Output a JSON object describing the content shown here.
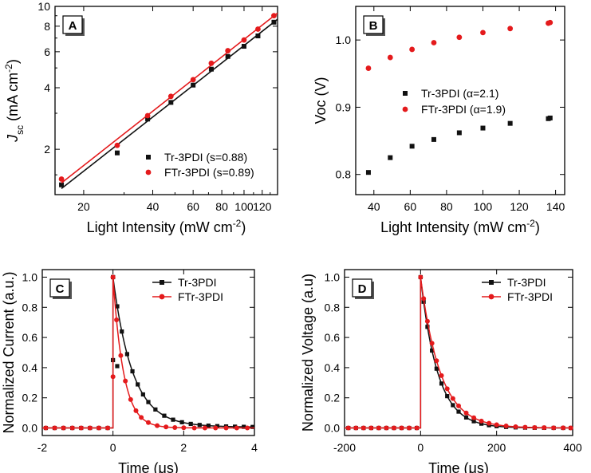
{
  "colors": {
    "black": "#111111",
    "red": "#e41a1c",
    "axis": "#000000",
    "panel_label_bg": "#ffffff"
  },
  "chart_data": [
    {
      "panel": "A",
      "type": "scatter",
      "scale": "log-log",
      "xlabel": "Light Intensity (mW cm",
      "xlabel_sup": "-2",
      "xlabel_tail": ")",
      "ylabel_main": "J",
      "ylabel_sub": "sc",
      "ylabel_tail": " (mA cm",
      "ylabel_sup": "-2",
      "ylabel_end": ")",
      "xlim": [
        15,
        140
      ],
      "ylim": [
        1.2,
        10
      ],
      "x_ticks": [
        20,
        40,
        60,
        80,
        100,
        120
      ],
      "x_tick_labels": [
        "20",
        "40",
        "60",
        "80",
        "100",
        "120"
      ],
      "y_ticks": [
        2,
        4,
        6,
        8,
        10
      ],
      "y_tick_labels": [
        "2",
        "4",
        "6",
        "8",
        "10"
      ],
      "legend_position": "bottom-right",
      "series": [
        {
          "name": "Tr-3PDI (s=0.88)",
          "color": "black",
          "marker": "square",
          "x": [
            16,
            28,
            38,
            48,
            60,
            72,
            85,
            100,
            115,
            135
          ],
          "y": [
            1.34,
            1.92,
            2.81,
            3.39,
            4.12,
            4.93,
            5.69,
            6.38,
            7.17,
            8.37
          ],
          "fit": true
        },
        {
          "name": "FTr-3PDI (s=0.89)",
          "color": "red",
          "marker": "circle",
          "x": [
            16,
            28,
            38,
            48,
            60,
            72,
            85,
            100,
            115,
            135
          ],
          "y": [
            1.43,
            2.09,
            2.92,
            3.63,
            4.38,
            5.27,
            6.07,
            6.85,
            7.74,
            9.01
          ],
          "fit": true
        }
      ]
    },
    {
      "panel": "B",
      "type": "scatter",
      "xlabel": "Light Intensity (mW cm",
      "xlabel_sup": "-2",
      "xlabel_tail": ")",
      "ylabel_main": "Voc (V)",
      "xlim": [
        30,
        145
      ],
      "ylim": [
        0.77,
        1.05
      ],
      "x_ticks": [
        40,
        60,
        80,
        100,
        120,
        140
      ],
      "x_tick_labels": [
        "40",
        "60",
        "80",
        "100",
        "120",
        "140"
      ],
      "y_ticks": [
        0.8,
        0.9,
        1.0
      ],
      "y_tick_labels": [
        "0.8",
        "0.9",
        "1.0"
      ],
      "legend_position": "middle-left",
      "series": [
        {
          "name": "Tr-3PDI (α=2.1)",
          "color": "black",
          "marker": "square",
          "x": [
            37,
            49,
            61,
            73,
            87,
            100,
            115,
            136,
            137
          ],
          "y": [
            0.803,
            0.825,
            0.842,
            0.852,
            0.862,
            0.869,
            0.876,
            0.883,
            0.884
          ]
        },
        {
          "name": "FTr-3PDI (α=1.9)",
          "color": "red",
          "marker": "circle",
          "x": [
            37,
            49,
            61,
            73,
            87,
            100,
            115,
            136,
            137
          ],
          "y": [
            0.958,
            0.974,
            0.986,
            0.996,
            1.004,
            1.011,
            1.017,
            1.025,
            1.026
          ]
        }
      ]
    },
    {
      "panel": "C",
      "type": "line",
      "xlabel": "Time (μs)",
      "ylabel_main": "Normalized Current (a.u.)",
      "xlim": [
        -2,
        4
      ],
      "ylim": [
        -0.05,
        1.05
      ],
      "x_ticks": [
        -2,
        0,
        2,
        4
      ],
      "x_tick_labels": [
        "-2",
        "0",
        "2",
        "4"
      ],
      "y_ticks": [
        0.0,
        0.2,
        0.4,
        0.6,
        0.8,
        1.0
      ],
      "y_tick_labels": [
        "0.0",
        "0.2",
        "0.4",
        "0.6",
        "0.8",
        "1.0"
      ],
      "legend_position": "top-right",
      "series": [
        {
          "name": "Tr-3PDI",
          "color": "black",
          "marker": "square",
          "peak_at": 0,
          "decay_tau": 0.55,
          "tail": 0.015,
          "marker_x": [
            -1.9,
            -1.65,
            -1.4,
            -1.15,
            -0.9,
            -0.65,
            -0.4,
            -0.15,
            0.0,
            0.12,
            0.25,
            0.4,
            0.55,
            0.7,
            0.85,
            1.0,
            1.2,
            1.45,
            1.7,
            1.95,
            2.2,
            2.45,
            2.7,
            2.95,
            3.2,
            3.45,
            3.7,
            3.95
          ],
          "label_points": [
            [
              0.0,
              1.0
            ],
            [
              0.0,
              0.45
            ],
            [
              0.12,
              0.41
            ]
          ]
        },
        {
          "name": "FTr-3PDI",
          "color": "red",
          "marker": "circle",
          "peak_at": 0,
          "decay_tau": 0.3,
          "tail": 0.0,
          "marker_x": [
            -1.9,
            -1.65,
            -1.4,
            -1.15,
            -0.9,
            -0.65,
            -0.4,
            -0.15,
            0.0,
            0.1,
            0.22,
            0.35,
            0.5,
            0.65,
            0.8,
            1.0,
            1.25,
            1.5,
            1.75,
            2.0,
            2.3,
            2.6,
            2.9,
            3.2,
            3.5,
            3.8
          ],
          "label_points": [
            [
              0.0,
              1.0
            ],
            [
              0.0,
              0.34
            ]
          ]
        }
      ]
    },
    {
      "panel": "D",
      "type": "line",
      "xlabel": "Time (μs)",
      "ylabel_main": "Normalized Voltage (a.u)",
      "xlim": [
        -200,
        400
      ],
      "ylim": [
        -0.05,
        1.05
      ],
      "x_ticks": [
        -200,
        0,
        200,
        400
      ],
      "x_tick_labels": [
        "-200",
        "0",
        "200",
        "400"
      ],
      "y_ticks": [
        0.0,
        0.2,
        0.4,
        0.6,
        0.8,
        1.0
      ],
      "y_tick_labels": [
        "0.0",
        "0.2",
        "0.4",
        "0.6",
        "0.8",
        "1.0"
      ],
      "legend_position": "top-right",
      "series": [
        {
          "name": "Tr-3PDI",
          "color": "black",
          "marker": "square",
          "peak_at": 0,
          "decay_tau": 45,
          "tail": 0.0,
          "marker_x": [
            -190,
            -170,
            -150,
            -130,
            -110,
            -90,
            -70,
            -50,
            -30,
            -10,
            0,
            8,
            18,
            30,
            42,
            55,
            70,
            85,
            100,
            120,
            140,
            160,
            180,
            200,
            225,
            250,
            275,
            300,
            325,
            350,
            375,
            395
          ]
        },
        {
          "name": "FTr-3PDI",
          "color": "red",
          "marker": "circle",
          "peak_at": 0,
          "decay_tau": 52,
          "tail": 0.0,
          "marker_x": [
            -190,
            -170,
            -150,
            -130,
            -110,
            -90,
            -70,
            -50,
            -30,
            -10,
            0,
            8,
            18,
            30,
            42,
            55,
            70,
            85,
            100,
            120,
            140,
            160,
            180,
            200,
            225,
            250,
            275,
            300,
            325,
            350,
            375,
            395
          ]
        }
      ]
    }
  ]
}
